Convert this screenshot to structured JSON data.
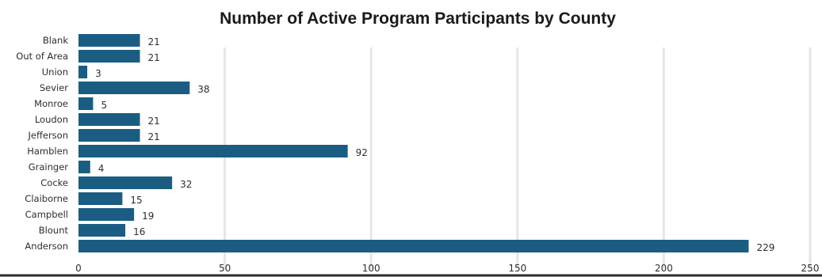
{
  "chart_data": {
    "type": "bar",
    "orientation": "horizontal",
    "title": "Number of Active Program Participants by County",
    "xlabel": "",
    "ylabel": "",
    "categories": [
      "Blank",
      "Out of Area",
      "Union",
      "Sevier",
      "Monroe",
      "Loudon",
      "Jefferson",
      "Hamblen",
      "Grainger",
      "Cocke",
      "Claiborne",
      "Campbell",
      "Blount",
      "Anderson"
    ],
    "values": [
      21,
      21,
      3,
      38,
      5,
      21,
      21,
      92,
      4,
      32,
      15,
      19,
      16,
      229
    ],
    "xlim": [
      0,
      250
    ],
    "xticks": [
      0,
      50,
      100,
      150,
      200,
      250
    ],
    "grid": "vertical",
    "legend": "none",
    "bar_color": "#1b5d82"
  }
}
